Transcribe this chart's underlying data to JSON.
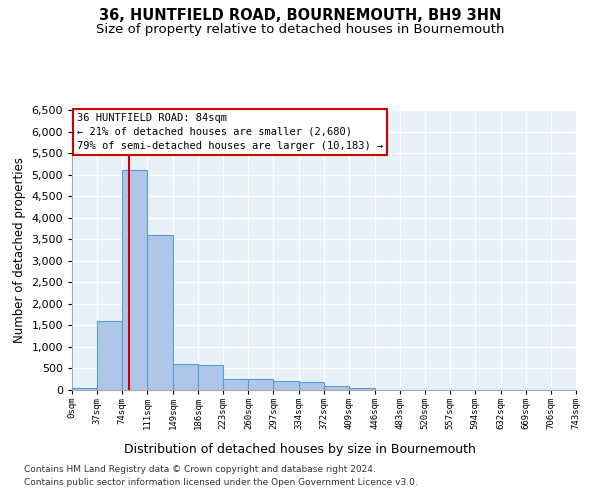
{
  "title": "36, HUNTFIELD ROAD, BOURNEMOUTH, BH9 3HN",
  "subtitle": "Size of property relative to detached houses in Bournemouth",
  "xlabel": "Distribution of detached houses by size in Bournemouth",
  "ylabel": "Number of detached properties",
  "footnote1": "Contains HM Land Registry data © Crown copyright and database right 2024.",
  "footnote2": "Contains public sector information licensed under the Open Government Licence v3.0.",
  "annotation_line1": "36 HUNTFIELD ROAD: 84sqm",
  "annotation_line2": "← 21% of detached houses are smaller (2,680)",
  "annotation_line3": "79% of semi-detached houses are larger (10,183) →",
  "property_size_sqm": 84,
  "bar_edges": [
    0,
    37,
    74,
    111,
    149,
    186,
    223,
    260,
    297,
    334,
    372,
    409,
    446,
    483,
    520,
    557,
    594,
    632,
    669,
    706,
    743
  ],
  "bar_heights": [
    50,
    1600,
    5100,
    3600,
    600,
    580,
    250,
    250,
    200,
    195,
    100,
    50,
    0,
    0,
    0,
    0,
    0,
    0,
    0,
    0
  ],
  "bar_color": "#aec6e8",
  "bar_edgecolor": "#5a9fd4",
  "vline_x": 84,
  "vline_color": "#cc0000",
  "ylim": [
    0,
    6500
  ],
  "yticks": [
    0,
    500,
    1000,
    1500,
    2000,
    2500,
    3000,
    3500,
    4000,
    4500,
    5000,
    5500,
    6000,
    6500
  ],
  "bg_color": "#e8f0f8",
  "grid_color": "#ffffff",
  "title_fontsize": 10.5,
  "subtitle_fontsize": 9.5,
  "xlabel_fontsize": 9,
  "ylabel_fontsize": 8.5
}
